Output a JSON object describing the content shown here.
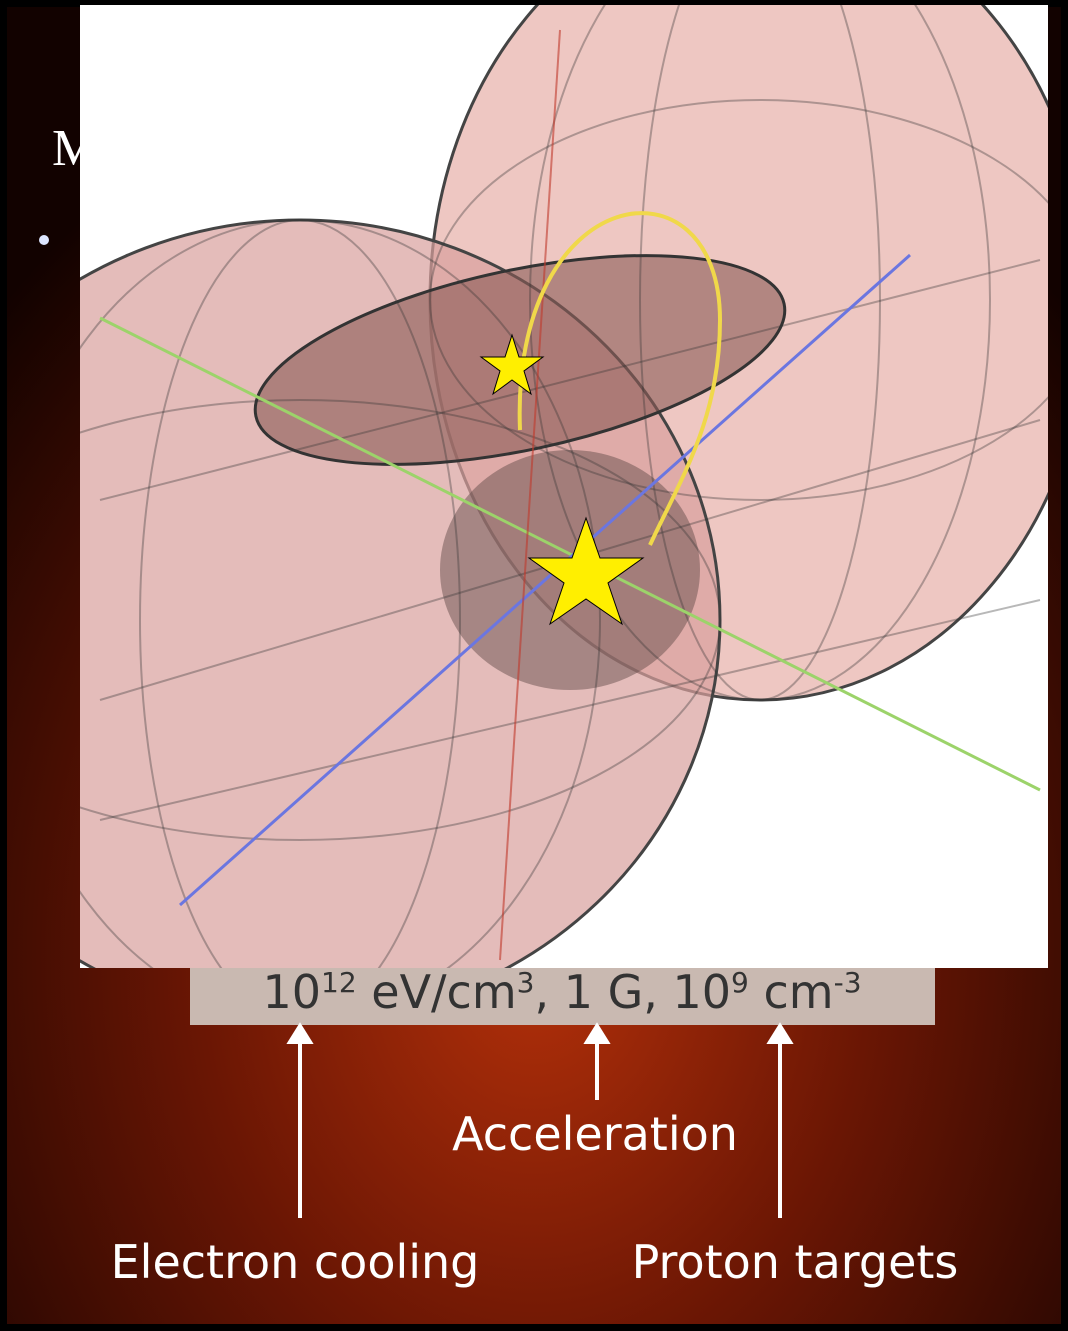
{
  "slide": {
    "title_fragment": "M",
    "quantities": [
      {
        "text": "10",
        "sup": false
      },
      {
        "text": "12",
        "sup": true
      },
      {
        "text": " eV/cm",
        "sup": false
      },
      {
        "text": "3",
        "sup": true
      },
      {
        "text": ",  1 G,  10",
        "sup": false
      },
      {
        "text": "9",
        "sup": true
      },
      {
        "text": " cm",
        "sup": false
      },
      {
        "text": "-3",
        "sup": true
      }
    ],
    "labels": {
      "acceleration": "Acceleration",
      "electron_cooling": "Electron cooling",
      "proton_targets": "Proton targets"
    }
  }
}
